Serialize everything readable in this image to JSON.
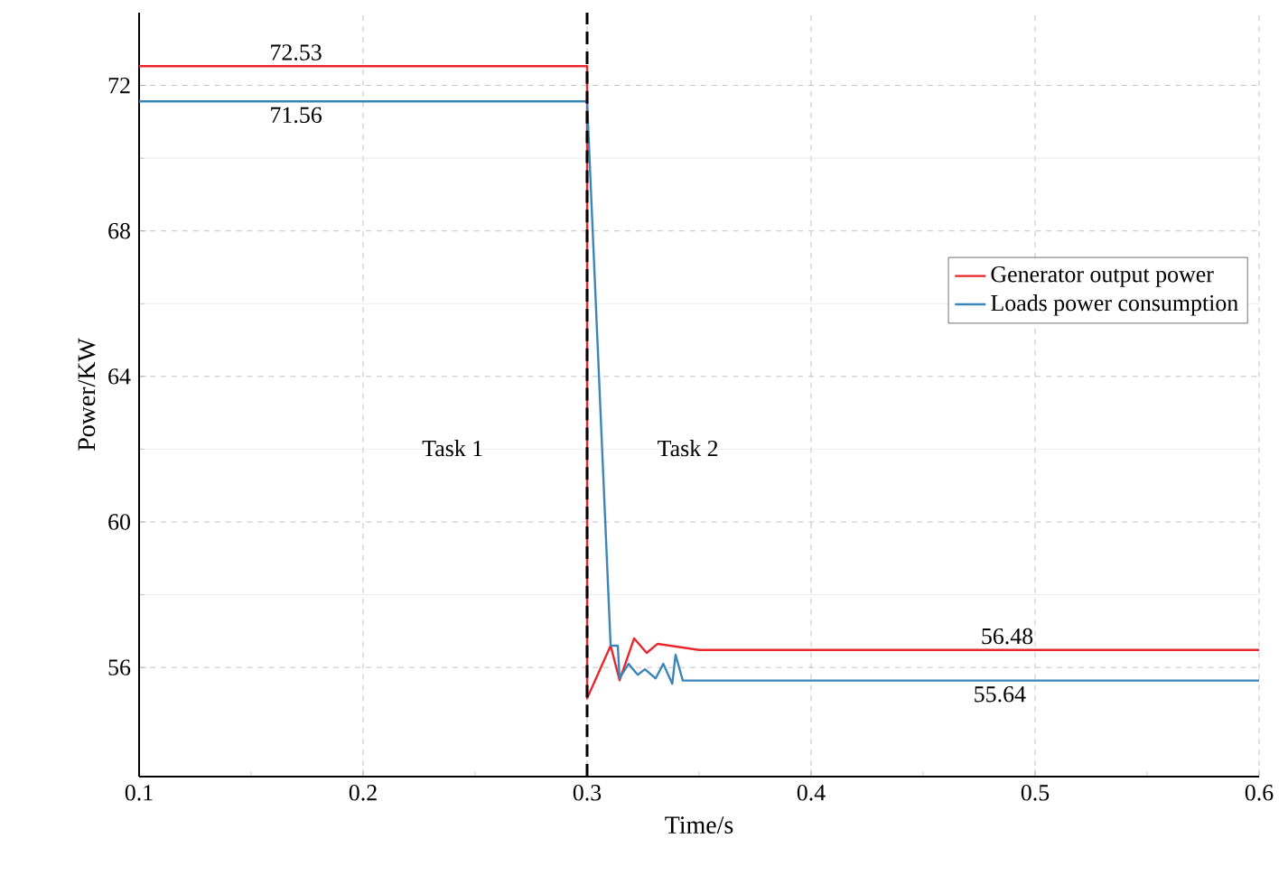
{
  "chart_data": {
    "type": "line",
    "xlabel": "Time/s",
    "ylabel": "Power/KW",
    "xlim": [
      0.1,
      0.6
    ],
    "xticks": [
      0.1,
      0.2,
      0.3,
      0.4,
      0.5,
      0.6
    ],
    "ylim": [
      53,
      74
    ],
    "yticks": [
      56,
      60,
      64,
      68,
      72
    ],
    "grid": true,
    "legend": "right",
    "marker": "none",
    "line_style": "solid",
    "series": [
      {
        "name": "Generator output power",
        "color": "#e8262b",
        "x": [
          0.1,
          0.3,
          0.3,
          0.3105,
          0.3145,
          0.321,
          0.3266,
          0.3315,
          0.35,
          0.6
        ],
        "values": [
          72.53,
          72.53,
          55.15,
          56.6,
          55.65,
          56.8,
          56.4,
          56.65,
          56.48,
          56.48
        ]
      },
      {
        "name": "Loads power consumption",
        "color": "#3a86b8",
        "x": [
          0.1,
          0.3,
          0.3105,
          0.3137,
          0.3145,
          0.3185,
          0.3226,
          0.3258,
          0.3306,
          0.334,
          0.338,
          0.3395,
          0.3427,
          0.6
        ],
        "values": [
          71.56,
          71.56,
          56.6,
          56.6,
          55.7,
          56.1,
          55.8,
          55.95,
          55.7,
          56.1,
          55.55,
          56.35,
          55.64,
          55.64
        ]
      }
    ],
    "ref_lines": [
      {
        "axis": "x",
        "value": 0.3,
        "color": "#000000",
        "line_style": "dashed"
      }
    ],
    "annotations": [
      {
        "text": "72.53",
        "y": 72.53
      },
      {
        "text": "71.56",
        "y": 71.56
      },
      {
        "text": "56.48",
        "y": 56.48
      },
      {
        "text": "55.64",
        "y": 55.64
      },
      "Task 1",
      "Task 2"
    ]
  }
}
